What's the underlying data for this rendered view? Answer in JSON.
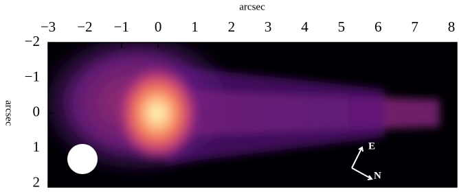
{
  "chart_data": {
    "type": "image",
    "xlabel": "arcsec",
    "ylabel": "arcsec",
    "xlim": [
      -3,
      8.15
    ],
    "ylim": [
      -2,
      2.1
    ],
    "y_inverted": true,
    "xticks": [
      {
        "value": -3,
        "label": "−3"
      },
      {
        "value": -2,
        "label": "−2"
      },
      {
        "value": -1,
        "label": "−1"
      },
      0,
      1,
      2,
      3,
      4,
      5,
      6,
      7,
      8
    ],
    "yticks": [
      {
        "value": -2,
        "label": "−2"
      },
      {
        "value": -1,
        "label": "−1"
      },
      0,
      1,
      2
    ],
    "annotations": [
      "E",
      "N"
    ]
  }
}
